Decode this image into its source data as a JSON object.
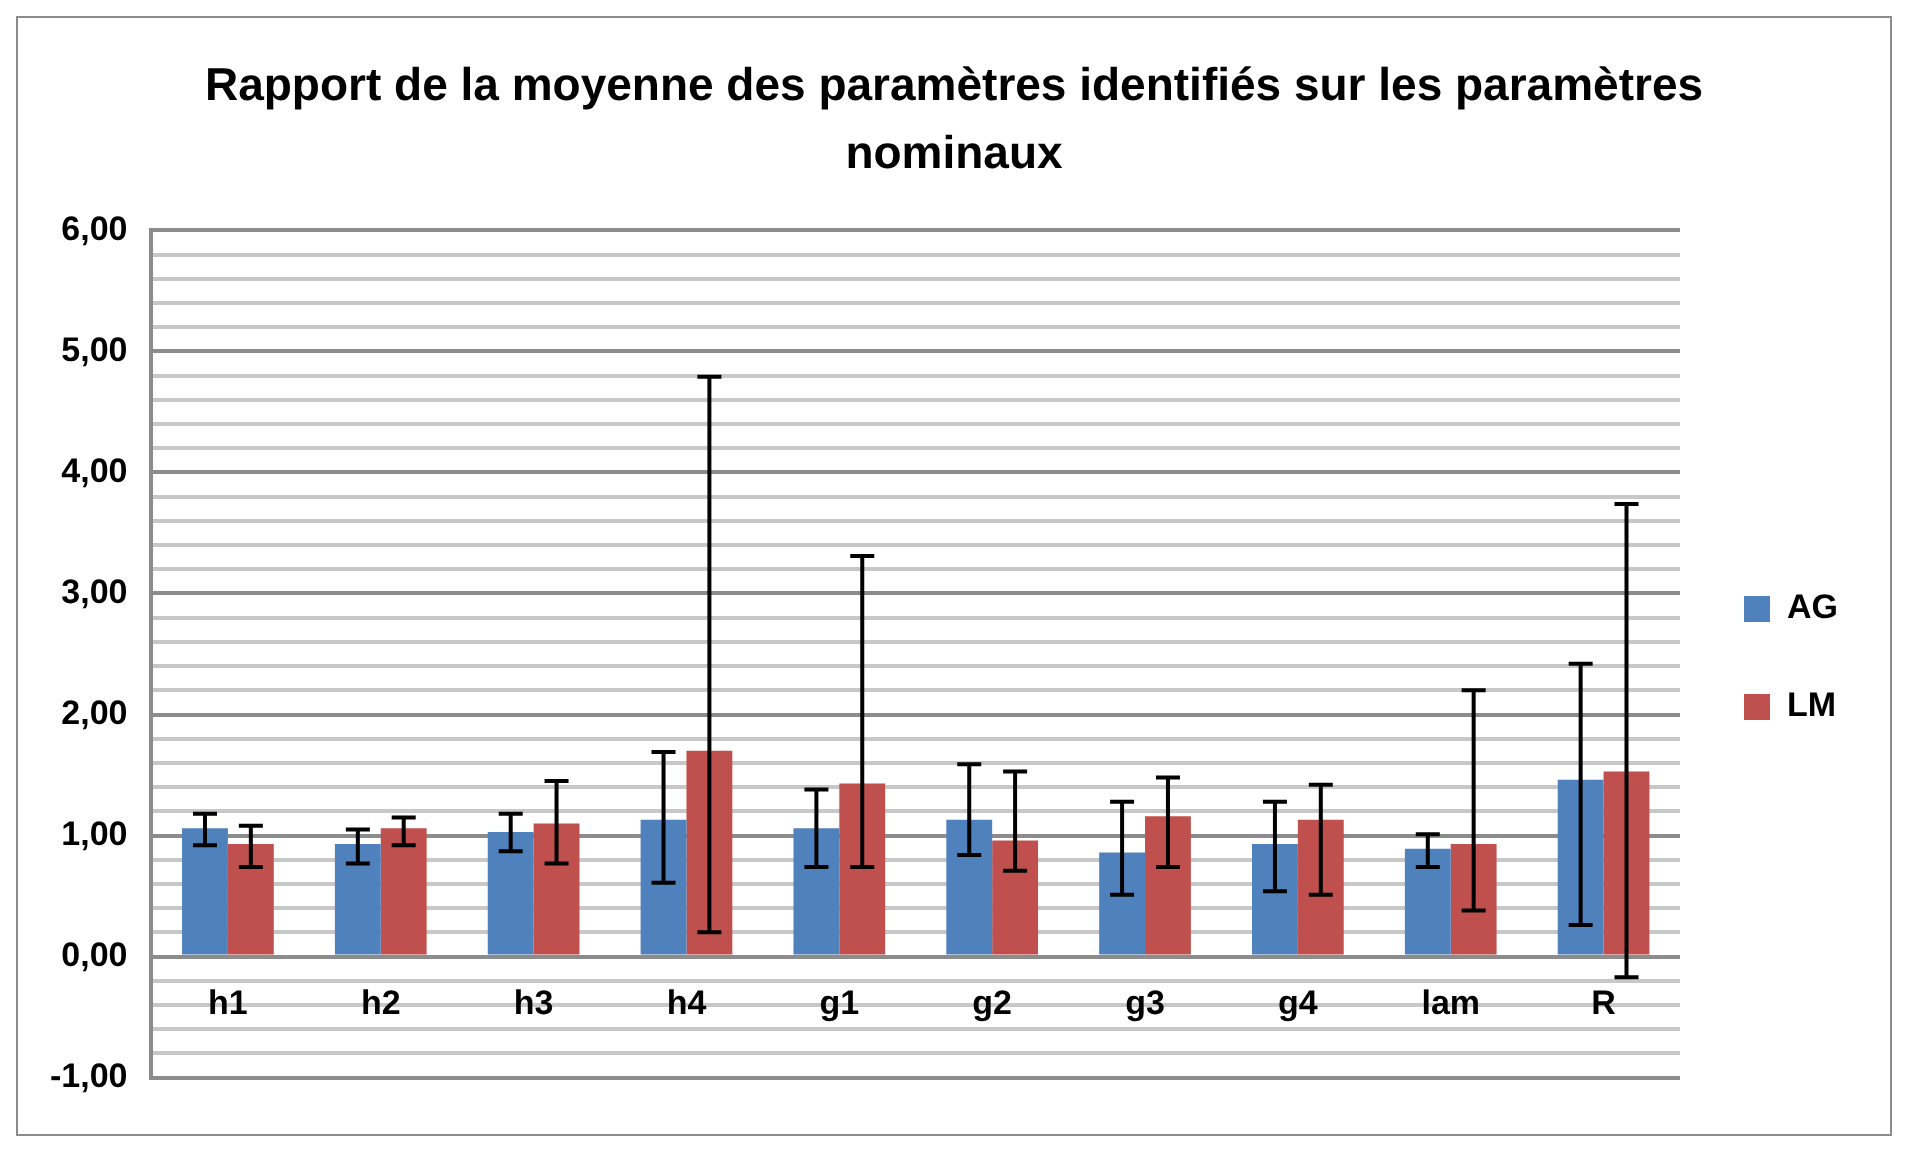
{
  "chart_data": {
    "type": "bar",
    "title": "Rapport de la moyenne des paramètres identifiés sur les paramètres nominaux",
    "categories": [
      "h1",
      "h2",
      "h3",
      "h4",
      "g1",
      "g2",
      "g3",
      "g4",
      "lam",
      "R"
    ],
    "series": [
      {
        "name": "AG",
        "color": "#4f81bd",
        "values": [
          1.06,
          0.93,
          1.03,
          1.13,
          1.06,
          1.13,
          0.86,
          0.93,
          0.89,
          1.46
        ],
        "errors": [
          [
            0.92,
            1.18
          ],
          [
            0.77,
            1.05
          ],
          [
            0.87,
            1.18
          ],
          [
            0.61,
            1.69
          ],
          [
            0.74,
            1.38
          ],
          [
            0.84,
            1.59
          ],
          [
            0.51,
            1.28
          ],
          [
            0.54,
            1.28
          ],
          [
            0.74,
            1.01
          ],
          [
            0.26,
            2.42
          ]
        ]
      },
      {
        "name": "LM",
        "color": "#c0504d",
        "values": [
          0.93,
          1.06,
          1.1,
          1.7,
          1.43,
          0.96,
          1.16,
          1.13,
          0.93,
          1.53
        ],
        "errors": [
          [
            0.74,
            1.08
          ],
          [
            0.92,
            1.15
          ],
          [
            0.77,
            1.45
          ],
          [
            0.2,
            4.79
          ],
          [
            0.74,
            3.31
          ],
          [
            0.71,
            1.53
          ],
          [
            0.74,
            1.48
          ],
          [
            0.51,
            1.42
          ],
          [
            0.38,
            2.2
          ],
          [
            -0.17,
            3.74
          ]
        ]
      }
    ],
    "ylim": [
      -1,
      6
    ],
    "yticks": [
      {
        "value": -1,
        "label": "-1,00"
      },
      {
        "value": -0.8,
        "label": null
      },
      {
        "value": -0.6,
        "label": null
      },
      {
        "value": -0.4,
        "label": null
      },
      {
        "value": -0.2,
        "label": null
      },
      {
        "value": 0,
        "label": "0,00"
      },
      {
        "value": 0.2,
        "label": null
      },
      {
        "value": 0.4,
        "label": null
      },
      {
        "value": 0.6,
        "label": null
      },
      {
        "value": 0.8,
        "label": null
      },
      {
        "value": 1,
        "label": "1,00"
      },
      {
        "value": 1.2,
        "label": null
      },
      {
        "value": 1.4,
        "label": null
      },
      {
        "value": 1.6,
        "label": null
      },
      {
        "value": 1.8,
        "label": null
      },
      {
        "value": 2,
        "label": "2,00"
      },
      {
        "value": 2.2,
        "label": null
      },
      {
        "value": 2.4,
        "label": null
      },
      {
        "value": 2.6,
        "label": null
      },
      {
        "value": 2.8,
        "label": null
      },
      {
        "value": 3,
        "label": "3,00"
      },
      {
        "value": 3.2,
        "label": null
      },
      {
        "value": 3.4,
        "label": null
      },
      {
        "value": 3.6,
        "label": null
      },
      {
        "value": 3.8,
        "label": null
      },
      {
        "value": 4,
        "label": "4,00"
      },
      {
        "value": 4.2,
        "label": null
      },
      {
        "value": 4.4,
        "label": null
      },
      {
        "value": 4.6,
        "label": null
      },
      {
        "value": 4.8,
        "label": null
      },
      {
        "value": 5,
        "label": "5,00"
      },
      {
        "value": 5.2,
        "label": null
      },
      {
        "value": 5.4,
        "label": null
      },
      {
        "value": 5.6,
        "label": null
      },
      {
        "value": 5.8,
        "label": null
      },
      {
        "value": 6,
        "label": "6,00"
      }
    ],
    "grid": "y",
    "legend": "right"
  }
}
